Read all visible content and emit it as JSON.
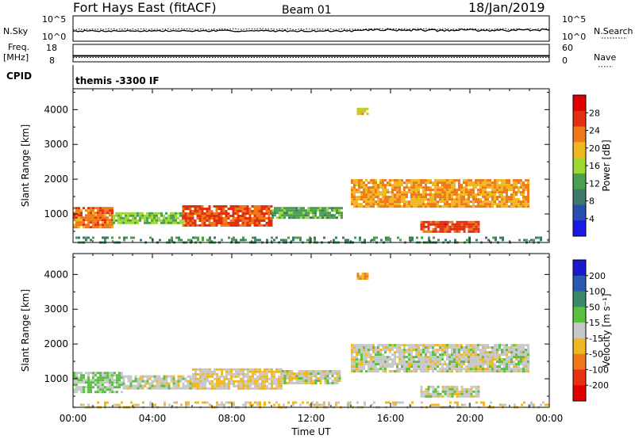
{
  "header": {
    "station": "Fort Hays East (fitACF)",
    "beam": "Beam 01",
    "date": "18/Jan/2019"
  },
  "summary": {
    "nsky_label": "N.Sky",
    "nsky_ticks": [
      "10^5",
      "10^0"
    ],
    "nsearch_label": "N.Search",
    "nsearch_ticks": [
      "10^5",
      "10^0"
    ],
    "freq_label": "Freq.",
    "freq_unit": "[MHz]",
    "freq_ticks": [
      "18",
      "8"
    ],
    "nave_label": "Nave",
    "nave_ticks": [
      "60",
      "0"
    ],
    "cpid_label": "CPID",
    "cpid_value": "themis -3300 IF"
  },
  "colors": {
    "power": [
      "#1a1ae6",
      "#2a4fb0",
      "#3d7a6a",
      "#4aa050",
      "#9ed830",
      "#f0b820",
      "#f07818",
      "#e03010",
      "#e00000"
    ],
    "velocity": [
      "#1a1acc",
      "#2a5ab0",
      "#3a8a6a",
      "#5ac040",
      "#c8c8c8",
      "#f0b820",
      "#f07818",
      "#e83010",
      "#e00000"
    ]
  },
  "chart_data": [
    {
      "type": "heatmap",
      "name": "power",
      "xlabel": "Time UT",
      "ylabel": "Slant Range [km]",
      "xlim": [
        0,
        24
      ],
      "ylim": [
        180,
        4600
      ],
      "x_ticks": [
        "00:00",
        "04:00",
        "08:00",
        "12:00",
        "16:00",
        "20:00",
        "00:00"
      ],
      "y_ticks": [
        1000,
        2000,
        3000,
        4000
      ],
      "colorbar_label": "Power [dB]",
      "colorbar_ticks": [
        "28",
        "24",
        "20",
        "16",
        "12",
        "8",
        "4"
      ],
      "colorbar_range": [
        0,
        30
      ],
      "regions": [
        {
          "x0": 0.0,
          "x1": 2.0,
          "y0": 650,
          "y1": 1200,
          "value": 22
        },
        {
          "x0": 2.0,
          "x1": 5.5,
          "y0": 750,
          "y1": 1050,
          "value": 14
        },
        {
          "x0": 5.5,
          "x1": 10.0,
          "y0": 650,
          "y1": 1250,
          "value": 24
        },
        {
          "x0": 10.0,
          "x1": 13.5,
          "y0": 900,
          "y1": 1200,
          "value": 12
        },
        {
          "x0": 14.0,
          "x1": 23.0,
          "y0": 1200,
          "y1": 2000,
          "value": 20
        },
        {
          "x0": 14.3,
          "x1": 14.8,
          "y0": 3850,
          "y1": 4050,
          "value": 18
        },
        {
          "x0": 17.5,
          "x1": 20.5,
          "y0": 500,
          "y1": 800,
          "value": 24
        },
        {
          "x0": 0.0,
          "x1": 24.0,
          "y0": 200,
          "y1": 350,
          "value": 10
        }
      ]
    },
    {
      "type": "heatmap",
      "name": "velocity",
      "xlabel": "Time UT",
      "ylabel": "Slant Range [km]",
      "xlim": [
        0,
        24
      ],
      "ylim": [
        180,
        4600
      ],
      "x_ticks": [
        "00:00",
        "04:00",
        "08:00",
        "12:00",
        "16:00",
        "20:00",
        "00:00"
      ],
      "y_ticks": [
        1000,
        2000,
        3000,
        4000
      ],
      "colorbar_label": "Velocity [m s⁻¹]",
      "colorbar_ticks": [
        "200",
        "100",
        "50",
        "15",
        "-15",
        "-50",
        "-100",
        "-200"
      ],
      "colorbar_range": [
        -250,
        250
      ],
      "regions": [
        {
          "x0": 0.0,
          "x1": 2.5,
          "y0": 650,
          "y1": 1200,
          "value": 30
        },
        {
          "x0": 2.5,
          "x1": 6.0,
          "y0": 750,
          "y1": 1100,
          "value": 0
        },
        {
          "x0": 6.0,
          "x1": 10.5,
          "y0": 700,
          "y1": 1300,
          "value": -30
        },
        {
          "x0": 10.5,
          "x1": 13.5,
          "y0": 850,
          "y1": 1250,
          "value": 0
        },
        {
          "x0": 14.0,
          "x1": 23.0,
          "y0": 1200,
          "y1": 2000,
          "value": 0
        },
        {
          "x0": 14.3,
          "x1": 14.8,
          "y0": 3850,
          "y1": 4050,
          "value": -70
        },
        {
          "x0": 17.5,
          "x1": 20.5,
          "y0": 500,
          "y1": 800,
          "value": 0
        },
        {
          "x0": 0.0,
          "x1": 24.0,
          "y0": 200,
          "y1": 350,
          "value": -30
        }
      ]
    }
  ]
}
